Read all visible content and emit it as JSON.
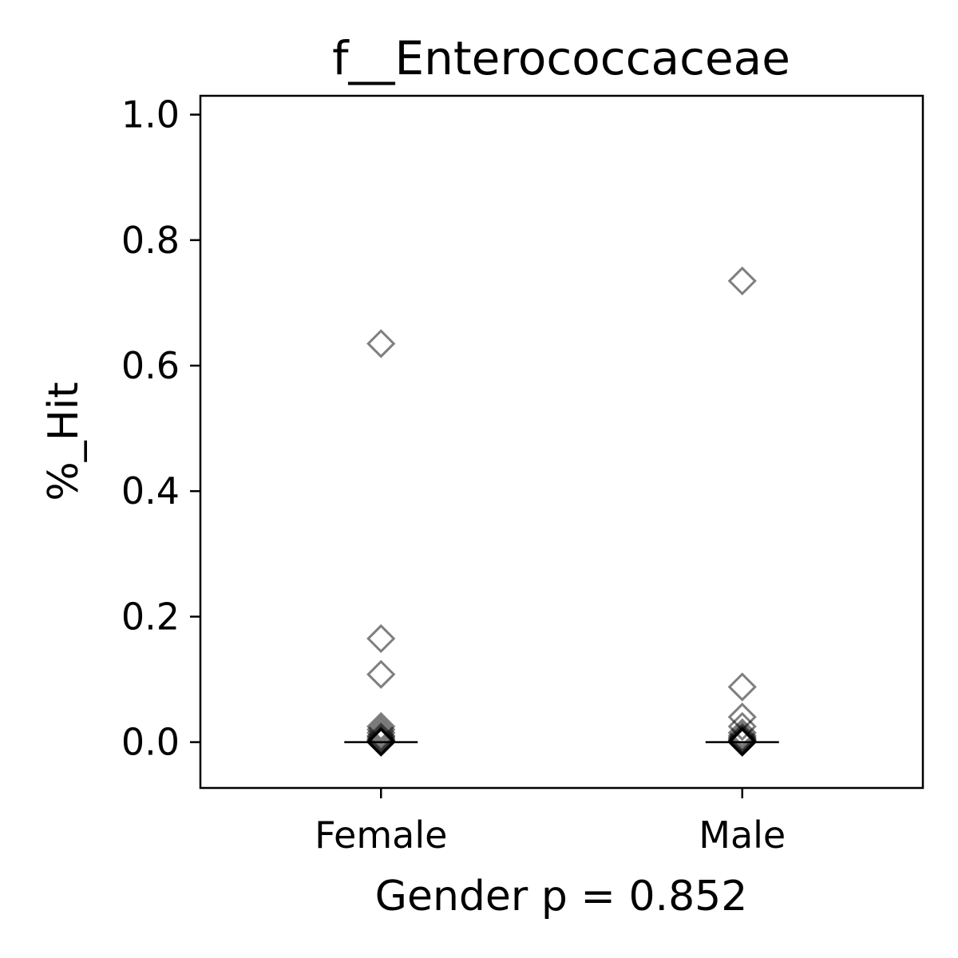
{
  "chart_data": {
    "type": "scatter",
    "title": "f__Enterococcaceae",
    "xlabel": "Gender p = 0.852",
    "ylabel": "%_Hit",
    "categories": [
      "Female",
      "Male"
    ],
    "ylim": [
      -0.073,
      1.03
    ],
    "yticks": [
      "0.0",
      "0.2",
      "0.4",
      "0.6",
      "0.8",
      "1.0"
    ],
    "grid": false,
    "marker": "open-diamond",
    "series": [
      {
        "category": "Female",
        "median": 0.0,
        "values": [
          0.635,
          0.165,
          0.108,
          0.025,
          0.02,
          0.015,
          0.01,
          0.008,
          0.005,
          0.003,
          0.002,
          0.001,
          0.0,
          0.0,
          0.0,
          0.0
        ]
      },
      {
        "category": "Male",
        "median": 0.0,
        "values": [
          0.735,
          0.088,
          0.04,
          0.025,
          0.015,
          0.01,
          0.007,
          0.005,
          0.003,
          0.002,
          0.001,
          0.0,
          0.0,
          0.0,
          0.0
        ]
      }
    ],
    "colors": {
      "marker": "#000000",
      "median": "#000000",
      "axes": "#000000"
    }
  }
}
